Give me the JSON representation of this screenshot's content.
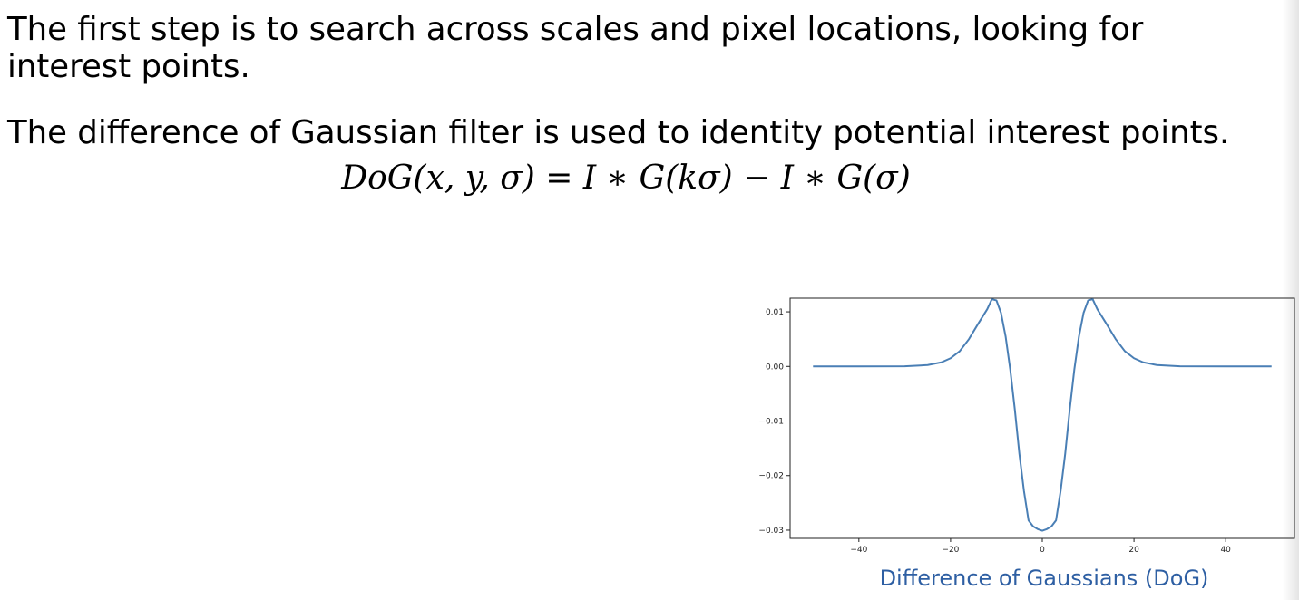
{
  "paragraphs": [
    "The first step is to search across scales and pixel locations, looking for",
    "interest points.",
    "The difference of Gaussian filter is used to identity potential interest points."
  ],
  "equation": "DoG(x, y, σ) = I ∗ G(kσ) − I ∗ G(σ)",
  "caption": "Difference of Gaussians (DoG)",
  "colors": {
    "line": "#4a7fb5",
    "caption": "#2e5fa3"
  },
  "chart_data": {
    "type": "line",
    "title": "",
    "xlabel": "",
    "ylabel": "",
    "xlim": [
      -55,
      55
    ],
    "ylim": [
      -0.0315,
      0.0125
    ],
    "x_ticks": [
      -40,
      -20,
      0,
      20,
      40
    ],
    "x_tick_labels": [
      "−40",
      "−20",
      "0",
      "20",
      "40"
    ],
    "y_ticks": [
      0.01,
      0.0,
      -0.01,
      -0.02,
      -0.03
    ],
    "y_tick_labels": [
      "0.01",
      "0.00",
      "−0.01",
      "−0.02",
      "−0.03"
    ],
    "grid": false,
    "legend": "none",
    "series": [
      {
        "x": [
          -50,
          -40,
          -30,
          -25,
          -22,
          -20,
          -18,
          -16,
          -14,
          -12,
          -11,
          -10,
          -9,
          -8,
          -7,
          -6,
          -5,
          -4,
          -3,
          -2,
          -1,
          0,
          1,
          2,
          3,
          4,
          5,
          6,
          7,
          8,
          9,
          10,
          11,
          12,
          14,
          16,
          18,
          20,
          22,
          25,
          30,
          40,
          50
        ],
        "y": [
          0.0,
          0.0,
          2e-05,
          0.00025,
          0.00075,
          0.0015,
          0.0028,
          0.005,
          0.0078,
          0.0105,
          0.0123,
          0.0121,
          0.0098,
          0.0055,
          -0.0005,
          -0.0078,
          -0.016,
          -0.0228,
          -0.0282,
          -0.0293,
          -0.0298,
          -0.0301,
          -0.0298,
          -0.0293,
          -0.0282,
          -0.0228,
          -0.016,
          -0.0078,
          -0.0005,
          0.0055,
          0.0098,
          0.0121,
          0.0123,
          0.0105,
          0.0078,
          0.005,
          0.0028,
          0.0015,
          0.00075,
          0.00025,
          2e-05,
          0.0,
          0.0
        ]
      }
    ]
  }
}
